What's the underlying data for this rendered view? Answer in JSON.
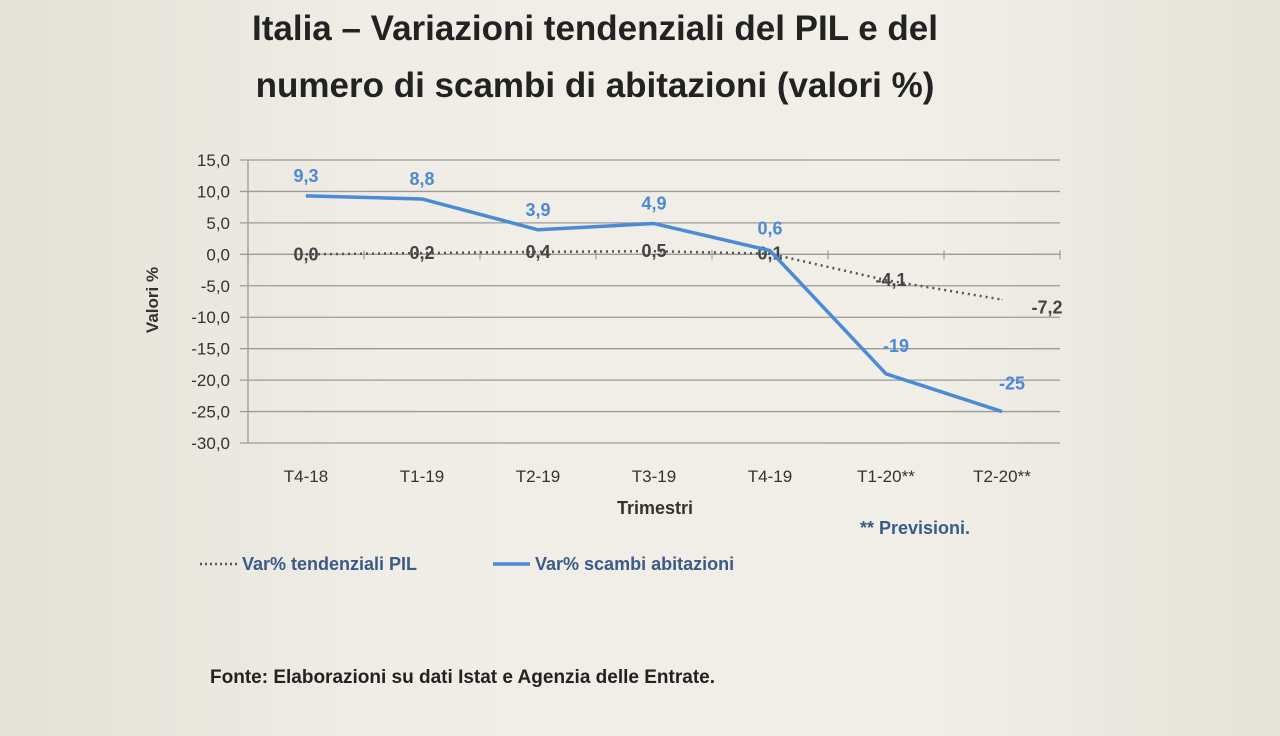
{
  "chart_data": {
    "type": "line",
    "title_lines": [
      "Italia – Variazioni tendenziali del PIL e del",
      "numero di scambi di abitazioni (valori %)"
    ],
    "xlabel": "Trimestri",
    "ylabel": "Valori %",
    "ylim": [
      -30,
      15
    ],
    "yticks": [
      15,
      10,
      5,
      0,
      -5,
      -10,
      -15,
      -20,
      -25,
      -30
    ],
    "ytick_labels": [
      "15,0",
      "10,0",
      "5,0",
      "0,0",
      "-5,0",
      "-10,0",
      "-15,0",
      "-20,0",
      "-25,0",
      "-30,0"
    ],
    "categories": [
      "T4-18",
      "T1-19",
      "T2-19",
      "T3-19",
      "T4-19",
      "T1-20**",
      "T2-20**"
    ],
    "grid": true,
    "legend_position": "bottom-left",
    "series": [
      {
        "name": "Var% tendenziali PIL",
        "style": "dotted",
        "color": "#555555",
        "values": [
          0.0,
          0.2,
          0.4,
          0.5,
          0.1,
          -4.1,
          -7.2
        ],
        "labels": [
          "0,0",
          "0,2",
          "0,4",
          "0,5",
          "0,1",
          "-4,1",
          "-7,2"
        ]
      },
      {
        "name": "Var% scambi abitazioni",
        "style": "solid",
        "color": "#4a8ad6",
        "values": [
          9.3,
          8.8,
          3.9,
          4.9,
          0.6,
          -19,
          -25
        ],
        "labels": [
          "9,3",
          "8,8",
          "3,9",
          "4,9",
          "0,6",
          "-19",
          "-25"
        ]
      }
    ],
    "note": "** Previsioni.",
    "source": "Fonte: Elaborazioni su dati Istat e Agenzia delle Entrate."
  }
}
